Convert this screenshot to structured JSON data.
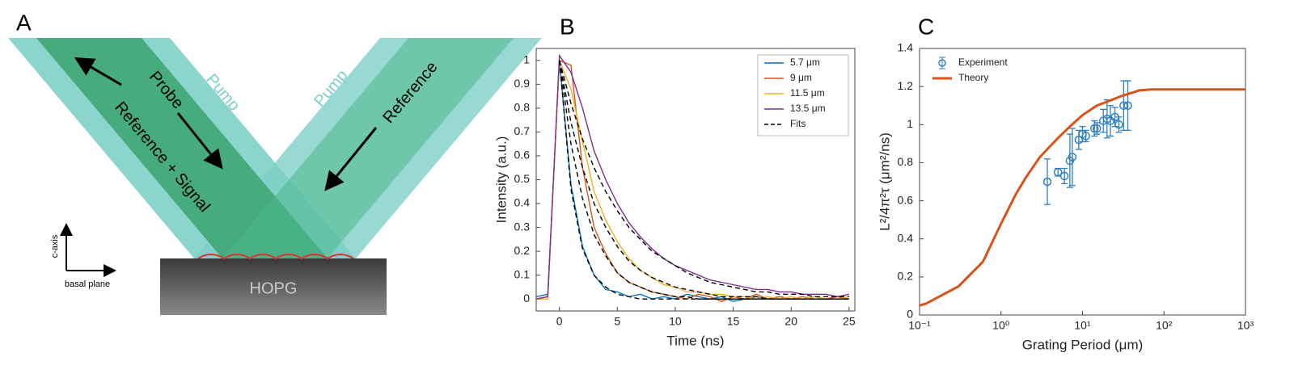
{
  "panel_a": {
    "label": "A",
    "pump_left": "Pump",
    "pump_right": "Pump",
    "probe": "Probe",
    "reference": "Reference",
    "reference_signal": "Reference + Signal",
    "c_axis": "c-axis",
    "basal_plane": "basal plane",
    "sample": "HOPG"
  },
  "chart_data": [
    {
      "type": "line",
      "panel_label": "B",
      "x_label": "Time (ns)",
      "y_label": "Intensity (a.u.)",
      "x": [
        -2,
        -1,
        0,
        1,
        2,
        3,
        4,
        5,
        6,
        7,
        8,
        9,
        10,
        11,
        12,
        13,
        14,
        15,
        16,
        17,
        18,
        19,
        20,
        21,
        22,
        23,
        24,
        25
      ],
      "xlim": [
        -2,
        25.5
      ],
      "xticks": [
        0,
        5,
        10,
        15,
        20,
        25
      ],
      "ylim": [
        -0.05,
        1.05
      ],
      "yticks": [
        0,
        0.1,
        0.2,
        0.3,
        0.4,
        0.5,
        0.6,
        0.7,
        0.8,
        0.9,
        1
      ],
      "legend": "upper right",
      "series": [
        {
          "name": "5.7 μm",
          "color": "#0072bd",
          "values": [
            0.01,
            0.02,
            1.0,
            0.48,
            0.22,
            0.1,
            0.04,
            0.03,
            0.01,
            0.02,
            0.0,
            0.01,
            0.0,
            0.02,
            0.01,
            0.0,
            0.01,
            -0.01,
            0.0,
            0.01,
            0.0,
            0.01,
            0.0,
            0.0,
            0.01,
            0.0,
            0.01,
            0.0
          ]
        },
        {
          "name": "9 μm",
          "color": "#d95319",
          "values": [
            0,
            0.01,
            1.0,
            0.98,
            0.55,
            0.3,
            0.19,
            0.11,
            0.07,
            0.05,
            0.03,
            0.02,
            0.01,
            0.0,
            0.02,
            0.01,
            -0.01,
            0.01,
            0.0,
            0.02,
            0.0,
            0.01,
            0.0,
            0.01,
            0.0,
            0.0,
            0.01,
            0.0
          ]
        },
        {
          "name": "11.5 μm",
          "color": "#edb120",
          "values": [
            0,
            0,
            1.0,
            0.88,
            0.66,
            0.45,
            0.33,
            0.24,
            0.17,
            0.12,
            0.09,
            0.06,
            0.05,
            0.03,
            0.03,
            0.02,
            0.02,
            0.01,
            0.01,
            0.0,
            0.01,
            0.0,
            0.01,
            0.0,
            0.01,
            0.0,
            0.0,
            0.01
          ]
        },
        {
          "name": "13.5 μm",
          "color": "#7e2f8e",
          "values": [
            0,
            0.01,
            1.02,
            0.95,
            0.8,
            0.62,
            0.5,
            0.4,
            0.32,
            0.26,
            0.21,
            0.17,
            0.14,
            0.12,
            0.1,
            0.08,
            0.07,
            0.06,
            0.05,
            0.04,
            0.04,
            0.03,
            0.03,
            0.02,
            0.02,
            0.02,
            0.01,
            0.02
          ]
        },
        {
          "name": "Fits",
          "color": "#000000",
          "dashed": true,
          "values": [
            [
              null,
              null,
              1,
              0.46,
              0.21,
              0.1,
              0.05,
              0.02,
              0.01,
              0,
              0,
              0,
              0,
              0,
              0,
              0,
              0,
              0,
              0,
              0,
              0,
              0,
              0,
              0,
              0,
              0,
              0,
              0
            ],
            [
              null,
              null,
              1,
              0.65,
              0.42,
              0.27,
              0.18,
              0.11,
              0.07,
              0.05,
              0.03,
              0.02,
              0.01,
              0.01,
              0,
              0,
              0,
              0,
              0,
              0,
              0,
              0,
              0,
              0,
              0,
              0,
              0,
              0
            ],
            [
              null,
              null,
              1,
              0.74,
              0.55,
              0.4,
              0.3,
              0.22,
              0.16,
              0.12,
              0.09,
              0.07,
              0.05,
              0.04,
              0.03,
              0.02,
              0.01,
              0.01,
              0.01,
              0.01,
              0,
              0,
              0,
              0,
              0,
              0,
              0,
              0
            ],
            [
              null,
              null,
              1,
              0.82,
              0.67,
              0.55,
              0.45,
              0.37,
              0.3,
              0.25,
              0.2,
              0.17,
              0.14,
              0.11,
              0.09,
              0.07,
              0.06,
              0.05,
              0.04,
              0.03,
              0.03,
              0.02,
              0.02,
              0.02,
              0.01,
              0.01,
              0.01,
              0.01
            ]
          ]
        }
      ]
    },
    {
      "type": "scatter",
      "panel_label": "C",
      "x_label": "Grating Period (μm)",
      "y_label": "L²/4π²τ (μm²/ns)",
      "xscale": "log",
      "xlim": [
        0.1,
        1000
      ],
      "xticks": [
        {
          "value": 0.1,
          "label": "10⁻¹"
        },
        {
          "value": 1,
          "label": "10⁰"
        },
        {
          "value": 10,
          "label": "10¹"
        },
        {
          "value": 100,
          "label": "10²"
        },
        {
          "value": 1000,
          "label": "10³"
        }
      ],
      "ylim": [
        0,
        1.4
      ],
      "yticks": [
        0,
        0.2,
        0.4,
        0.6,
        0.8,
        1,
        1.2,
        1.4
      ],
      "legend": "upper left",
      "series": [
        {
          "name": "Experiment",
          "type": "errorbar",
          "color": "#2f7fc1",
          "x": [
            3.7,
            5,
            6,
            7,
            7.5,
            9,
            10,
            11,
            14,
            15,
            18,
            20,
            22,
            25,
            28,
            32,
            36
          ],
          "values": [
            0.7,
            0.75,
            0.73,
            0.81,
            0.83,
            0.92,
            0.95,
            0.94,
            0.98,
            0.98,
            1.02,
            1.03,
            1.02,
            1.04,
            1.0,
            1.1,
            1.1
          ],
          "errors": [
            0.12,
            0.02,
            0.04,
            0.14,
            0.15,
            0.05,
            0.04,
            0.03,
            0.04,
            0.03,
            0.06,
            0.1,
            0.08,
            0.05,
            0.04,
            0.13,
            0.13
          ]
        },
        {
          "name": "Theory",
          "type": "line",
          "color": "#d95319",
          "x": [
            0.1,
            0.12,
            0.3,
            0.6,
            1,
            1.5,
            2,
            3,
            5,
            7,
            10,
            15,
            20,
            30,
            50,
            70,
            100,
            200,
            500,
            1000
          ],
          "values": [
            0.05,
            0.06,
            0.15,
            0.28,
            0.48,
            0.63,
            0.72,
            0.83,
            0.93,
            0.99,
            1.05,
            1.1,
            1.12,
            1.15,
            1.18,
            1.185,
            1.185,
            1.185,
            1.185,
            1.185
          ]
        }
      ]
    }
  ]
}
